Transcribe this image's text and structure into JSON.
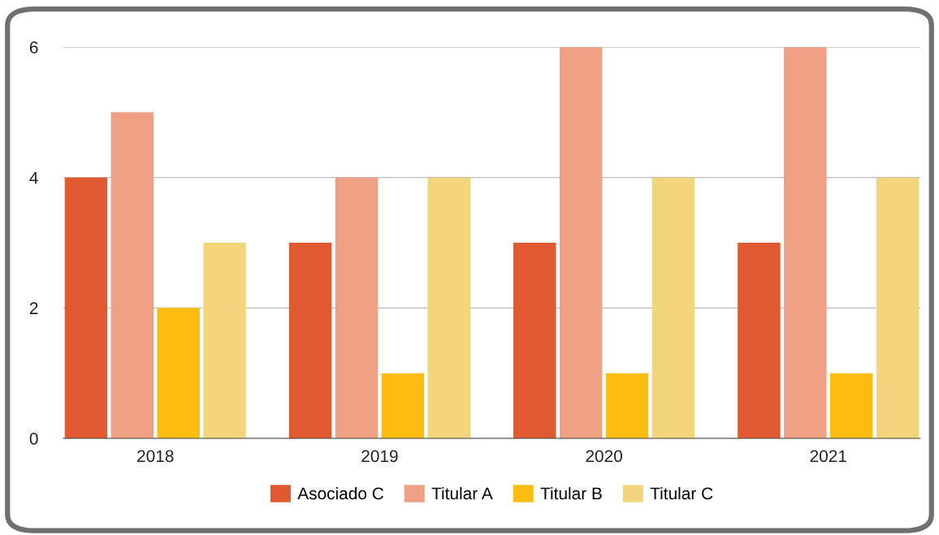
{
  "chart_data": {
    "type": "bar",
    "categories": [
      "2018",
      "2019",
      "2020",
      "2021"
    ],
    "series": [
      {
        "name": "Asociado C",
        "color": "#e05a2f",
        "values": [
          4,
          3,
          3,
          3
        ]
      },
      {
        "name": "Titular A",
        "color": "#f0a084",
        "values": [
          5,
          4,
          6,
          6
        ]
      },
      {
        "name": "Titular B",
        "color": "#fdbd10",
        "values": [
          2,
          1,
          1,
          1
        ]
      },
      {
        "name": "Titular C",
        "color": "#f3d57c",
        "values": [
          3,
          4,
          4,
          4
        ]
      }
    ],
    "ylim": [
      0,
      6
    ],
    "yticks": [
      0,
      2,
      4,
      6
    ],
    "grid": "y",
    "legend": "bottom"
  }
}
